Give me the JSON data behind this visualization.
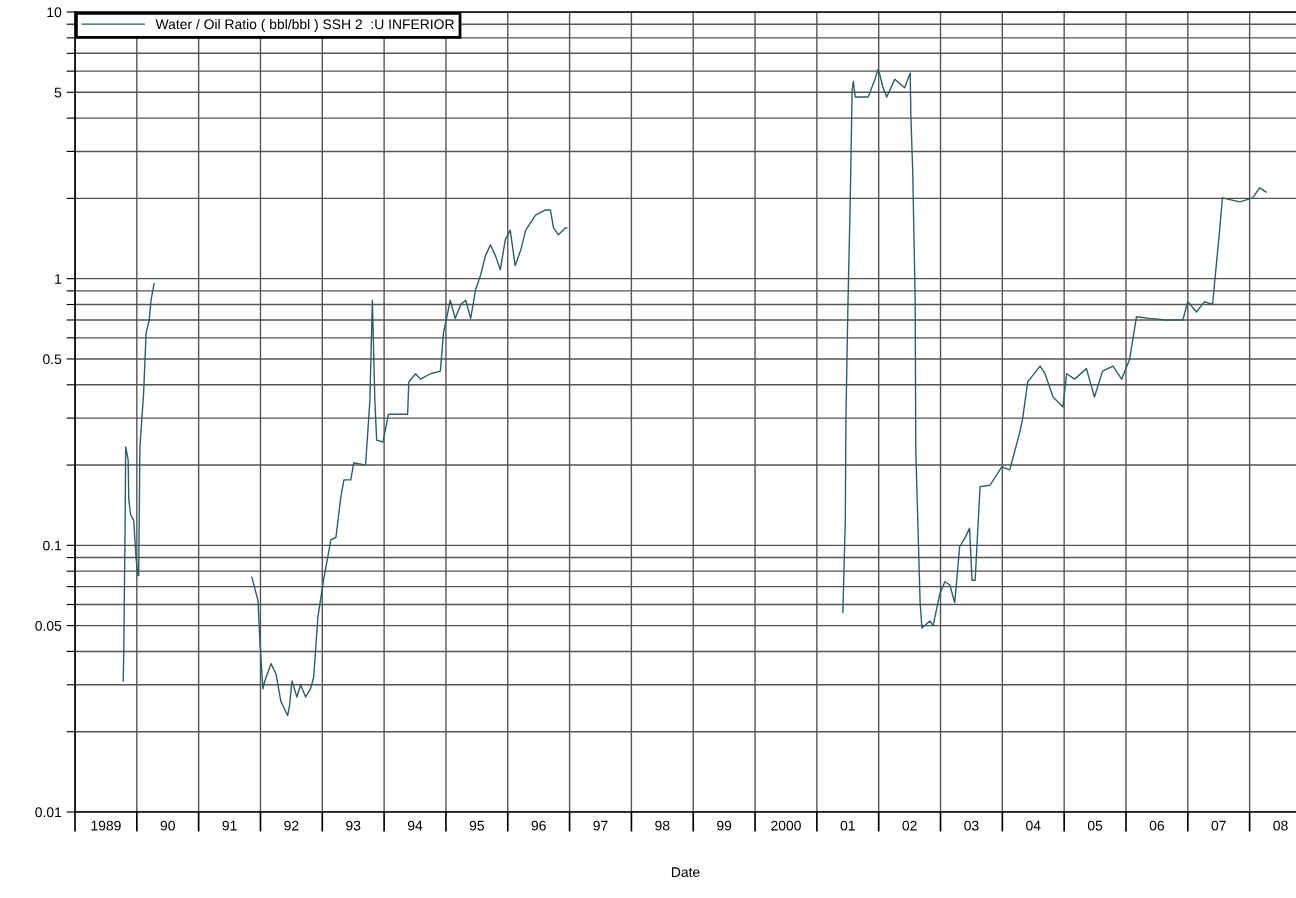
{
  "chart_data": {
    "type": "line",
    "xlabel": "Date",
    "x": [
      1989.28,
      1989.29,
      1989.31,
      1989.32,
      1989.36,
      1989.37,
      1989.4,
      1989.45,
      1989.49,
      1989.52,
      1989.53,
      1989.55,
      1989.58,
      1989.61,
      1989.65,
      1989.7,
      1989.73,
      1989.78,
      1990.5,
      1991.36,
      1991.46,
      1991.49,
      1991.54,
      1991.57,
      1991.67,
      1991.75,
      1991.83,
      1991.94,
      1991.97,
      1992.01,
      1992.09,
      1992.15,
      1992.23,
      1992.31,
      1992.36,
      1992.43,
      1992.52,
      1992.64,
      1992.72,
      1992.8,
      1992.85,
      1992.96,
      1993.01,
      1993.2,
      1993.27,
      1993.31,
      1993.35,
      1993.38,
      1993.48,
      1993.57,
      1993.69,
      1993.88,
      1993.9,
      1994.01,
      1994.09,
      1994.25,
      1994.41,
      1994.46,
      1994.57,
      1994.65,
      1994.74,
      1994.82,
      1994.9,
      1994.98,
      1995.06,
      1995.14,
      1995.22,
      1995.3,
      1995.38,
      1995.46,
      1995.54,
      1995.62,
      1995.71,
      1995.79,
      1995.95,
      1996.11,
      1996.19,
      1996.24,
      1996.32,
      1996.43,
      1996.46,
      1998.5,
      2000.92,
      2000.96,
      2000.97,
      2001.0,
      2001.04,
      2001.07,
      2001.09,
      2001.12,
      2001.2,
      2001.33,
      2001.44,
      2001.49,
      2001.52,
      2001.57,
      2001.63,
      2001.76,
      2001.92,
      2002.01,
      2002.02,
      2002.05,
      2002.09,
      2002.1,
      2002.17,
      2002.2,
      2002.33,
      2002.38,
      2002.49,
      2002.57,
      2002.65,
      2002.73,
      2002.81,
      2002.89,
      2002.97,
      2003.01,
      2003.06,
      2003.14,
      2003.3,
      2003.49,
      2003.62,
      2003.78,
      2003.83,
      2003.91,
      2004.11,
      2004.19,
      2004.32,
      2004.48,
      2004.54,
      2004.67,
      2004.86,
      2004.99,
      2005.12,
      2005.29,
      2005.43,
      2005.56,
      2005.67,
      2005.88,
      2006.16,
      2006.42,
      2006.5,
      2006.64,
      2006.77,
      2006.9,
      2007.01,
      2007.06,
      2007.34,
      2007.55,
      2007.66,
      2007.77
    ],
    "series": [
      {
        "name": "Water / Oil Ratio ( bbl/bbl ) SSH 2  :U INFERIOR",
        "color": "#2f5f5f",
        "values": [
          0.031,
          0.042,
          0.117,
          0.234,
          0.209,
          0.148,
          0.13,
          0.124,
          0.088,
          0.077,
          0.077,
          0.232,
          0.295,
          0.372,
          0.625,
          0.7,
          0.83,
          0.96,
          null,
          0.076,
          0.062,
          0.044,
          0.029,
          0.031,
          0.036,
          0.033,
          0.026,
          0.023,
          0.025,
          0.031,
          0.027,
          0.03,
          0.027,
          0.029,
          0.032,
          0.054,
          0.074,
          0.105,
          0.107,
          0.152,
          0.176,
          0.176,
          0.204,
          0.2,
          0.35,
          0.83,
          0.35,
          0.248,
          0.244,
          0.31,
          0.31,
          0.31,
          0.41,
          0.44,
          0.42,
          0.44,
          0.45,
          0.625,
          0.83,
          0.71,
          0.8,
          0.83,
          0.71,
          0.91,
          1.03,
          1.22,
          1.34,
          1.22,
          1.08,
          1.4,
          1.52,
          1.12,
          1.28,
          1.52,
          1.73,
          1.81,
          1.81,
          1.55,
          1.46,
          1.55,
          1.55,
          null,
          0.056,
          0.124,
          0.3,
          0.75,
          1.97,
          5.1,
          5.5,
          4.8,
          4.8,
          4.8,
          5.6,
          6.1,
          5.8,
          5.2,
          4.8,
          5.6,
          5.2,
          5.9,
          4.1,
          2.55,
          0.83,
          0.228,
          0.061,
          0.049,
          0.052,
          0.05,
          0.066,
          0.073,
          0.071,
          0.061,
          0.099,
          0.106,
          0.116,
          0.074,
          0.074,
          0.166,
          0.168,
          0.197,
          0.192,
          0.264,
          0.3,
          0.41,
          0.47,
          0.44,
          0.36,
          0.33,
          0.44,
          0.42,
          0.46,
          0.36,
          0.45,
          0.47,
          0.42,
          0.5,
          0.72,
          0.71,
          0.7,
          0.7,
          0.82,
          0.75,
          0.82,
          0.8,
          1.48,
          2.01,
          1.94,
          2.01,
          2.19,
          2.11
        ]
      }
    ],
    "log": "y",
    "ylim": [
      0.01,
      10
    ],
    "yticks": [
      0.01,
      {
        "value": 0.02,
        "label": null
      },
      {
        "value": 0.03,
        "label": null
      },
      {
        "value": 0.04,
        "label": null
      },
      0.05,
      {
        "value": 0.06,
        "label": null
      },
      {
        "value": 0.07,
        "label": null
      },
      {
        "value": 0.08,
        "label": null
      },
      {
        "value": 0.09,
        "label": null
      },
      0.1,
      {
        "value": 0.2,
        "label": null
      },
      {
        "value": 0.3,
        "label": null
      },
      {
        "value": 0.4,
        "label": null
      },
      0.5,
      {
        "value": 0.6,
        "label": null
      },
      {
        "value": 0.7,
        "label": null
      },
      {
        "value": 0.8,
        "label": null
      },
      {
        "value": 0.9,
        "label": null
      },
      1,
      {
        "value": 2,
        "label": null
      },
      {
        "value": 3,
        "label": null
      },
      {
        "value": 4,
        "label": null
      },
      5,
      {
        "value": 6,
        "label": null
      },
      {
        "value": 7,
        "label": null
      },
      {
        "value": 8,
        "label": null
      },
      {
        "value": 9,
        "label": null
      },
      10
    ],
    "xlim": [
      1988.5,
      2008.25
    ],
    "xticks": [
      {
        "value": 1988.5,
        "label": null
      },
      1989,
      {
        "value": 1989.5,
        "label": null
      },
      {
        "value": 1990,
        "label": "90"
      },
      {
        "value": 1990.5,
        "label": null
      },
      {
        "value": 1991,
        "label": "91"
      },
      {
        "value": 1991.5,
        "label": null
      },
      {
        "value": 1992,
        "label": "92"
      },
      {
        "value": 1992.5,
        "label": null
      },
      {
        "value": 1993,
        "label": "93"
      },
      {
        "value": 1993.5,
        "label": null
      },
      {
        "value": 1994,
        "label": "94"
      },
      {
        "value": 1994.5,
        "label": null
      },
      {
        "value": 1995,
        "label": "95"
      },
      {
        "value": 1995.5,
        "label": null
      },
      {
        "value": 1996,
        "label": "96"
      },
      {
        "value": 1996.5,
        "label": null
      },
      {
        "value": 1997,
        "label": "97"
      },
      {
        "value": 1997.5,
        "label": null
      },
      {
        "value": 1998,
        "label": "98"
      },
      {
        "value": 1998.5,
        "label": null
      },
      {
        "value": 1999,
        "label": "99"
      },
      {
        "value": 1999.5,
        "label": null
      },
      2000,
      {
        "value": 2000.5,
        "label": null
      },
      {
        "value": 2001,
        "label": "01"
      },
      {
        "value": 2001.5,
        "label": null
      },
      {
        "value": 2002,
        "label": "02"
      },
      {
        "value": 2002.5,
        "label": null
      },
      {
        "value": 2003,
        "label": "03"
      },
      {
        "value": 2003.5,
        "label": null
      },
      {
        "value": 2004,
        "label": "04"
      },
      {
        "value": 2004.5,
        "label": null
      },
      {
        "value": 2005,
        "label": "05"
      },
      {
        "value": 2005.5,
        "label": null
      },
      {
        "value": 2006,
        "label": "06"
      },
      {
        "value": 2006.5,
        "label": null
      },
      {
        "value": 2007,
        "label": "07"
      },
      {
        "value": 2007.5,
        "label": null
      },
      {
        "value": 2008,
        "label": "08"
      }
    ],
    "grid": true,
    "legend": "top left",
    "marker": "none",
    "line_style": "solid"
  }
}
